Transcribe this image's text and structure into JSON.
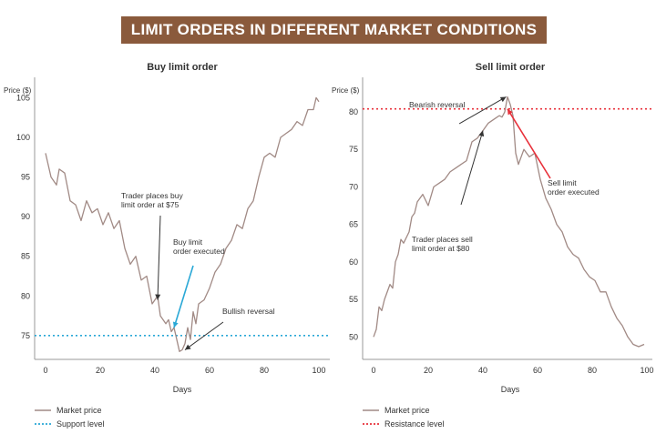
{
  "banner": {
    "title": "LIMIT ORDERS IN DIFFERENT MARKET CONDITIONS"
  },
  "colors": {
    "banner_bg": "#8a5a3c",
    "price_line": "#a18a85",
    "support": "#2aa8d6",
    "resistance": "#e8303a",
    "axis": "#999999",
    "annotation": "#333333"
  },
  "chart_data": [
    {
      "type": "line",
      "title": "Buy limit order",
      "xlabel": "Days",
      "ylabel": "Price ($)",
      "xlim": [
        0,
        100
      ],
      "ylim": [
        72,
        107
      ],
      "x_ticks": [
        0,
        20,
        40,
        60,
        80,
        100
      ],
      "y_ticks": [
        75,
        80,
        85,
        90,
        95,
        100,
        105
      ],
      "legend": [
        {
          "label": "Market price",
          "style": "solid",
          "color": "#a18a85"
        },
        {
          "label": "Support level",
          "style": "dotted",
          "color": "#2aa8d6"
        }
      ],
      "legend_position": "bottom-left",
      "reference_line": {
        "y": 75,
        "color": "#2aa8d6",
        "style": "dotted"
      },
      "series": [
        {
          "values_x": [
            0,
            2,
            4,
            5,
            7,
            9,
            11,
            13,
            15,
            17,
            19,
            21,
            23,
            25,
            27,
            29,
            31,
            33,
            35,
            37,
            39,
            41,
            42,
            44,
            45,
            46,
            47,
            48,
            49,
            50,
            51,
            52,
            53,
            54,
            55,
            56,
            58,
            60,
            62,
            64,
            66,
            68,
            70,
            72,
            74,
            76,
            78,
            80,
            82,
            84,
            86,
            88,
            90,
            92,
            94,
            96,
            98,
            99,
            100
          ],
          "values_y": [
            98,
            95,
            94,
            96,
            95.5,
            92,
            91.5,
            89.5,
            92,
            90.5,
            91,
            89,
            90.5,
            88.5,
            89.5,
            86,
            84,
            85,
            82,
            82.5,
            79,
            80,
            77.5,
            76.5,
            77,
            75.5,
            76,
            74.5,
            73,
            73.2,
            74,
            76,
            74.5,
            78,
            76.5,
            79,
            79.5,
            81,
            83,
            84,
            86,
            87,
            89,
            88.5,
            91,
            92,
            95,
            97.5,
            98,
            97.5,
            100,
            100.5,
            101,
            102,
            101.5,
            103.5,
            103.5,
            105,
            104.5
          ]
        }
      ],
      "annotations": [
        {
          "lines": [
            "Trader places buy",
            "limit order at $75"
          ],
          "arrow_to": [
            41,
            79.5
          ],
          "color": "#333333"
        },
        {
          "lines": [
            "Buy limit",
            "order executed"
          ],
          "arrow_to": [
            47,
            76
          ],
          "color": "#2aa8d6"
        },
        {
          "lines": [
            "Bullish reversal"
          ],
          "arrow_to": [
            51,
            73.2
          ],
          "color": "#333333"
        }
      ]
    },
    {
      "type": "line",
      "title": "Sell limit order",
      "xlabel": "Days",
      "ylabel": "Price ($)",
      "xlim": [
        0,
        100
      ],
      "ylim": [
        47,
        84
      ],
      "x_ticks": [
        0,
        20,
        40,
        60,
        80,
        100
      ],
      "y_ticks": [
        50,
        55,
        60,
        65,
        70,
        75,
        80
      ],
      "legend": [
        {
          "label": "Market price",
          "style": "solid",
          "color": "#a18a85"
        },
        {
          "label": "Resistance level",
          "style": "dotted",
          "color": "#e8303a"
        }
      ],
      "legend_position": "bottom-left",
      "reference_line": {
        "y": 80.4,
        "color": "#e8303a",
        "style": "dotted"
      },
      "series": [
        {
          "values_x": [
            0,
            1,
            2,
            3,
            4,
            6,
            7,
            8,
            9,
            10,
            11,
            13,
            14,
            15,
            16,
            18,
            20,
            22,
            24,
            26,
            28,
            30,
            32,
            34,
            36,
            38,
            40,
            42,
            44,
            46,
            47,
            48,
            49,
            50,
            51,
            52,
            53,
            55,
            57,
            59,
            61,
            63,
            65,
            67,
            69,
            71,
            73,
            75,
            77,
            79,
            81,
            83,
            85,
            87,
            89,
            91,
            93,
            95,
            97,
            99
          ],
          "values_y": [
            50,
            51,
            54,
            53.5,
            55,
            57,
            56.5,
            60,
            61,
            63,
            62.5,
            64,
            66,
            66.5,
            68,
            69,
            67.5,
            70,
            70.5,
            71,
            72,
            72.5,
            73,
            73.5,
            76,
            76.5,
            77.5,
            78.5,
            79,
            79.5,
            79.3,
            80,
            82,
            81,
            79.5,
            74.5,
            73,
            75,
            74,
            74.5,
            71,
            68.5,
            67,
            65,
            64,
            62,
            61,
            60.5,
            59,
            58,
            57.5,
            56,
            56,
            54,
            52.5,
            51.5,
            50,
            49,
            48.7,
            49
          ]
        }
      ],
      "annotations": [
        {
          "lines": [
            "Bearish reversal"
          ],
          "arrow_to": [
            48.5,
            82
          ],
          "color": "#333333"
        },
        {
          "lines": [
            "Sell limit",
            "order executed"
          ],
          "arrow_to": [
            49,
            80.4
          ],
          "color": "#e8303a"
        },
        {
          "lines": [
            "Trader places sell",
            "limit order at $80"
          ],
          "arrow_to": [
            40,
            77.5
          ],
          "color": "#333333"
        }
      ]
    }
  ]
}
